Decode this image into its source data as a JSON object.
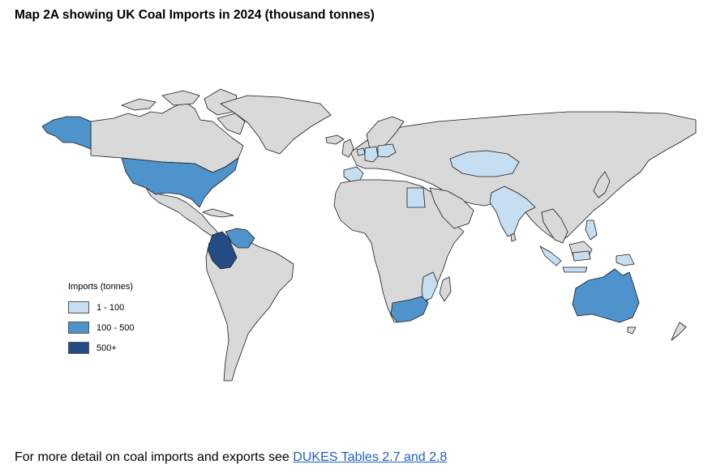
{
  "title": "Map 2A showing UK Coal Imports in 2024 (thousand tonnes)",
  "map": {
    "colors": {
      "ocean": "#ffffff",
      "land_default": "#d9d9d9",
      "border": "#1a1a1a",
      "band_low": "#c6def1",
      "band_mid": "#4f93cc",
      "band_high": "#244c84"
    },
    "countries": [
      {
        "name": "United States",
        "band": "100 - 500"
      },
      {
        "name": "Alaska (US)",
        "band": "100 - 500"
      },
      {
        "name": "Colombia",
        "band": "500+"
      },
      {
        "name": "Venezuela",
        "band": "100 - 500"
      },
      {
        "name": "South Africa",
        "band": "100 - 500"
      },
      {
        "name": "Australia",
        "band": "100 - 500"
      },
      {
        "name": "Kazakhstan",
        "band": "1 - 100"
      },
      {
        "name": "India",
        "band": "1 - 100"
      },
      {
        "name": "Egypt",
        "band": "1 - 100"
      },
      {
        "name": "Indonesia",
        "band": "1 - 100"
      },
      {
        "name": "Spain",
        "band": "1 - 100"
      },
      {
        "name": "Germany",
        "band": "1 - 100"
      },
      {
        "name": "Poland",
        "band": "1 - 100"
      },
      {
        "name": "Netherlands",
        "band": "1 - 100"
      },
      {
        "name": "Mozambique",
        "band": "1 - 100"
      },
      {
        "name": "Papua New Guinea",
        "band": "1 - 100"
      },
      {
        "name": "Philippines",
        "band": "1 - 100"
      }
    ]
  },
  "legend": {
    "title": "Imports (tonnes)",
    "items": [
      {
        "label": "1 - 100",
        "color": "#c6def1"
      },
      {
        "label": "100 - 500",
        "color": "#4f93cc"
      },
      {
        "label": "500+",
        "color": "#244c84"
      }
    ]
  },
  "footer": {
    "text": "For more detail on coal imports and exports see ",
    "link_text": "DUKES Tables 2.7 and 2.8"
  }
}
